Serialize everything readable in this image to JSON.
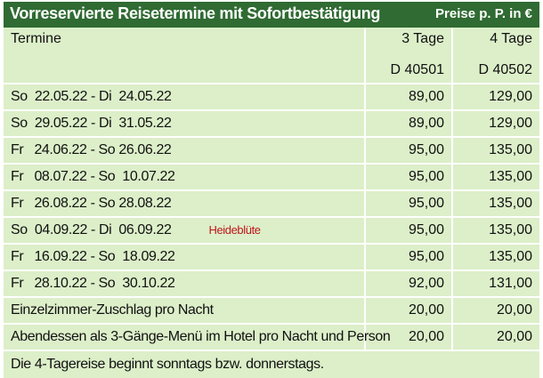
{
  "header": {
    "title": "Vorreservierte Reisetermine mit Sofortbestätigung",
    "price_note": "Preise p. P. in €"
  },
  "columns": {
    "dates": "Termine",
    "col1": "3 Tage",
    "col2": "4 Tage",
    "code1": "D 40501",
    "code2": "D 40502"
  },
  "rows": [
    {
      "date": "So  22.05.22 - Di  24.05.22",
      "p3": "89,00",
      "p4": "129,00"
    },
    {
      "date": "So  29.05.22 - Di  31.05.22",
      "p3": "89,00",
      "p4": "129,00"
    },
    {
      "date": "Fr   24.06.22 - So 26.06.22",
      "p3": "95,00",
      "p4": "135,00"
    },
    {
      "date": "Fr   08.07.22 - So  10.07.22",
      "p3": "95,00",
      "p4": "135,00"
    },
    {
      "date": "Fr   26.08.22 - So 28.08.22",
      "p3": "95,00",
      "p4": "135,00"
    },
    {
      "date": "So  04.09.22 - Di  06.09.22",
      "note": "Heideblüte",
      "p3": "95,00",
      "p4": "135,00"
    },
    {
      "date": "Fr   16.09.22 - So  18.09.22",
      "p3": "95,00",
      "p4": "135,00"
    },
    {
      "date": "Fr   28.10.22 - So  30.10.22",
      "p3": "92,00",
      "p4": "131,00"
    }
  ],
  "extras": [
    {
      "label": "Einzelzimmer-Zuschlag pro Nacht",
      "p3": "20,00",
      "p4": "20,00"
    },
    {
      "label": "Abendessen als 3-Gänge-Menü im Hotel pro Nacht und Person",
      "p3": "20,00",
      "p4": "20,00"
    }
  ],
  "footer": "Die 4-Tagereise beginnt sonntags bzw. donnerstags.",
  "colors": {
    "header_bg": "#2f6b32",
    "row_bg": "#dcefc9",
    "note": "#c0151a"
  }
}
